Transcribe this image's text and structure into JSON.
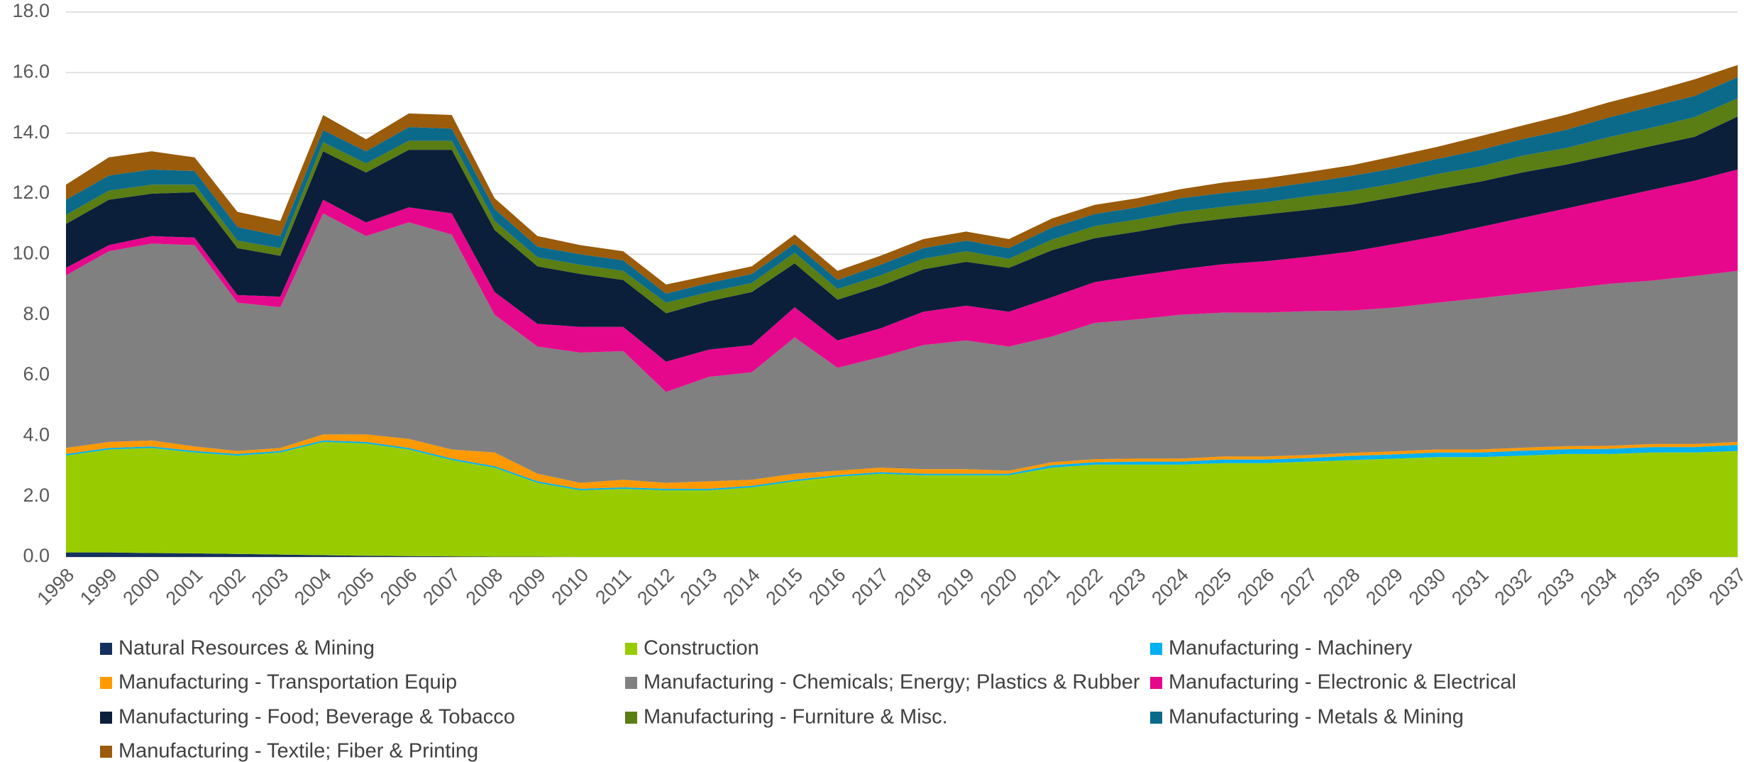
{
  "chart_data": {
    "type": "area",
    "stacked": true,
    "categories": [
      "1998",
      "1999",
      "2000",
      "2001",
      "2002",
      "2003",
      "2004",
      "2005",
      "2006",
      "2007",
      "2008",
      "2009",
      "2010",
      "2011",
      "2012",
      "2013",
      "2014",
      "2015",
      "2016",
      "2017",
      "2018",
      "2019",
      "2020",
      "2021",
      "2022",
      "2023",
      "2024",
      "2025",
      "2026",
      "2027",
      "2028",
      "2029",
      "2030",
      "2031",
      "2032",
      "2033",
      "2034",
      "2035",
      "2036",
      "2037"
    ],
    "ylim": [
      0,
      18
    ],
    "yticks": [
      {
        "value": 0,
        "label": "0.0"
      },
      {
        "value": 2,
        "label": "2.0"
      },
      {
        "value": 4,
        "label": "4.0"
      },
      {
        "value": 6,
        "label": "6.0"
      },
      {
        "value": 8,
        "label": "8.0"
      },
      {
        "value": 10,
        "label": "10.0"
      },
      {
        "value": 12,
        "label": "12.0"
      },
      {
        "value": 14,
        "label": "14.0"
      },
      {
        "value": 16,
        "label": "16.0"
      },
      {
        "value": 18,
        "label": "18.0"
      }
    ],
    "grid": true,
    "legend": "bottom",
    "series": [
      {
        "name": "Natural Resources & Mining",
        "color": "#14305e",
        "values": [
          0.15,
          0.15,
          0.13,
          0.12,
          0.1,
          0.08,
          0.06,
          0.04,
          0.03,
          0.02,
          0.01,
          0.01,
          0,
          0,
          0,
          0,
          0,
          0,
          0,
          0,
          0,
          0,
          0,
          0,
          0,
          0,
          0,
          0,
          0,
          0,
          0,
          0,
          0,
          0,
          0,
          0,
          0,
          0,
          0,
          0
        ]
      },
      {
        "name": "Construction",
        "color": "#99cc00",
        "values": [
          3.2,
          3.4,
          3.47,
          3.33,
          3.25,
          3.37,
          3.74,
          3.71,
          3.52,
          3.18,
          2.94,
          2.44,
          2.2,
          2.25,
          2.2,
          2.2,
          2.3,
          2.5,
          2.65,
          2.75,
          2.7,
          2.7,
          2.7,
          2.95,
          3.05,
          3.05,
          3.05,
          3.1,
          3.1,
          3.15,
          3.2,
          3.25,
          3.3,
          3.3,
          3.35,
          3.4,
          3.4,
          3.45,
          3.45,
          3.5
        ]
      },
      {
        "name": "Manufacturing - Machinery",
        "color": "#00b0f0",
        "values": [
          0.05,
          0.05,
          0.05,
          0.05,
          0.05,
          0.05,
          0.05,
          0.05,
          0.05,
          0.05,
          0.05,
          0.05,
          0.05,
          0.05,
          0.05,
          0.05,
          0.05,
          0.05,
          0.05,
          0.05,
          0.05,
          0.05,
          0.05,
          0.08,
          0.08,
          0.1,
          0.1,
          0.12,
          0.12,
          0.12,
          0.14,
          0.14,
          0.15,
          0.15,
          0.16,
          0.16,
          0.17,
          0.18,
          0.18,
          0.2
        ]
      },
      {
        "name": "Manufacturing - Transportation Equip",
        "color": "#ff9900",
        "values": [
          0.2,
          0.2,
          0.2,
          0.15,
          0.1,
          0.1,
          0.2,
          0.25,
          0.3,
          0.3,
          0.45,
          0.25,
          0.2,
          0.25,
          0.2,
          0.25,
          0.2,
          0.2,
          0.15,
          0.15,
          0.15,
          0.15,
          0.1,
          0.1,
          0.1,
          0.1,
          0.1,
          0.1,
          0.1,
          0.1,
          0.1,
          0.1,
          0.1,
          0.1,
          0.1,
          0.1,
          0.1,
          0.1,
          0.1,
          0.1
        ]
      },
      {
        "name": "Manufacturing - Chemicals; Energy; Plastics & Rubber",
        "color": "#808080",
        "values": [
          5.7,
          6.3,
          6.5,
          6.65,
          4.9,
          4.65,
          7.3,
          6.55,
          7.15,
          7.1,
          4.55,
          4.2,
          4.3,
          4.25,
          3.0,
          3.45,
          3.55,
          4.5,
          3.4,
          3.65,
          4.1,
          4.25,
          4.1,
          4.15,
          4.5,
          4.6,
          4.75,
          4.75,
          4.75,
          4.75,
          4.7,
          4.75,
          4.85,
          5.0,
          5.1,
          5.2,
          5.35,
          5.4,
          5.55,
          5.65
        ]
      },
      {
        "name": "Manufacturing - Electronic & Electrical",
        "color": "#e6088c",
        "values": [
          0.25,
          0.2,
          0.25,
          0.25,
          0.25,
          0.35,
          0.45,
          0.45,
          0.5,
          0.7,
          0.75,
          0.75,
          0.85,
          0.8,
          1.0,
          0.9,
          0.9,
          1.0,
          0.9,
          0.95,
          1.1,
          1.15,
          1.15,
          1.3,
          1.35,
          1.45,
          1.5,
          1.6,
          1.7,
          1.8,
          1.95,
          2.1,
          2.2,
          2.35,
          2.5,
          2.65,
          2.8,
          3.0,
          3.15,
          3.35
        ]
      },
      {
        "name": "Manufacturing - Food; Beverage & Tobacco",
        "color": "#0b1e3a",
        "values": [
          1.45,
          1.5,
          1.4,
          1.5,
          1.55,
          1.35,
          1.6,
          1.65,
          1.9,
          2.1,
          2.05,
          1.9,
          1.75,
          1.55,
          1.6,
          1.6,
          1.75,
          1.45,
          1.35,
          1.4,
          1.4,
          1.45,
          1.45,
          1.55,
          1.45,
          1.45,
          1.5,
          1.5,
          1.55,
          1.55,
          1.55,
          1.55,
          1.55,
          1.5,
          1.5,
          1.45,
          1.45,
          1.45,
          1.45,
          1.75
        ]
      },
      {
        "name": "Manufacturing - Furniture & Misc.",
        "color": "#5a7d14",
        "values": [
          0.3,
          0.3,
          0.3,
          0.25,
          0.25,
          0.25,
          0.3,
          0.3,
          0.3,
          0.3,
          0.3,
          0.3,
          0.3,
          0.3,
          0.35,
          0.3,
          0.3,
          0.35,
          0.35,
          0.35,
          0.35,
          0.35,
          0.3,
          0.35,
          0.4,
          0.4,
          0.4,
          0.4,
          0.4,
          0.45,
          0.45,
          0.45,
          0.5,
          0.5,
          0.55,
          0.55,
          0.6,
          0.6,
          0.65,
          0.6
        ]
      },
      {
        "name": "Manufacturing - Metals & Mining",
        "color": "#0b6a8a",
        "values": [
          0.5,
          0.5,
          0.5,
          0.45,
          0.45,
          0.4,
          0.4,
          0.4,
          0.45,
          0.4,
          0.4,
          0.35,
          0.35,
          0.35,
          0.3,
          0.3,
          0.3,
          0.3,
          0.3,
          0.35,
          0.35,
          0.35,
          0.35,
          0.4,
          0.4,
          0.4,
          0.45,
          0.45,
          0.45,
          0.45,
          0.5,
          0.5,
          0.5,
          0.55,
          0.55,
          0.6,
          0.65,
          0.7,
          0.7,
          0.7
        ]
      },
      {
        "name": "Manufacturing - Textile; Fiber & Printing",
        "color": "#9a5b0a",
        "values": [
          0.5,
          0.6,
          0.6,
          0.45,
          0.5,
          0.5,
          0.5,
          0.4,
          0.45,
          0.45,
          0.35,
          0.35,
          0.3,
          0.3,
          0.3,
          0.25,
          0.25,
          0.3,
          0.3,
          0.3,
          0.3,
          0.3,
          0.3,
          0.3,
          0.3,
          0.3,
          0.3,
          0.35,
          0.35,
          0.35,
          0.35,
          0.4,
          0.4,
          0.45,
          0.45,
          0.5,
          0.5,
          0.5,
          0.55,
          0.4
        ]
      }
    ]
  }
}
